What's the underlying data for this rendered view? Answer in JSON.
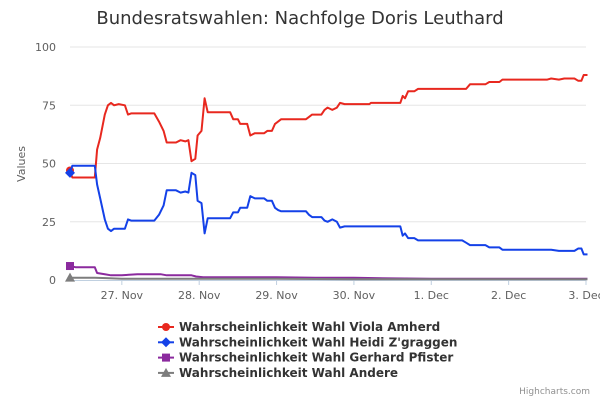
{
  "chart_data": {
    "type": "line",
    "title": "Bundesratswahlen: Nachfolge Doris Leuthard",
    "ylabel": "Values",
    "xlabel": "",
    "ylim": [
      0,
      100
    ],
    "yticks": [
      "0",
      "25",
      "50",
      "75",
      "100"
    ],
    "xlim": [
      26.33,
      33.0
    ],
    "xticks": [
      {
        "x": 27.0,
        "label": "27. Nov"
      },
      {
        "x": 28.0,
        "label": "28. Nov"
      },
      {
        "x": 29.0,
        "label": "29. Nov"
      },
      {
        "x": 30.0,
        "label": "30. Nov"
      },
      {
        "x": 31.0,
        "label": "1. Dec"
      },
      {
        "x": 32.0,
        "label": "2. Dec"
      },
      {
        "x": 33.0,
        "label": "3. Dec"
      }
    ],
    "series": [
      {
        "name": "Wahrscheinlichkeit Wahl Viola Amherd",
        "color": "#e8281f",
        "marker": "circle",
        "points": [
          [
            26.33,
            47
          ],
          [
            26.36,
            44
          ],
          [
            26.5,
            44
          ],
          [
            26.65,
            44
          ],
          [
            26.68,
            56
          ],
          [
            26.72,
            61
          ],
          [
            26.78,
            71
          ],
          [
            26.82,
            75
          ],
          [
            26.86,
            76
          ],
          [
            26.9,
            75
          ],
          [
            26.96,
            75.5
          ],
          [
            27.04,
            75
          ],
          [
            27.08,
            71
          ],
          [
            27.12,
            71.5
          ],
          [
            27.2,
            71.5
          ],
          [
            27.3,
            71.5
          ],
          [
            27.42,
            71.5
          ],
          [
            27.48,
            68
          ],
          [
            27.54,
            64
          ],
          [
            27.58,
            59
          ],
          [
            27.7,
            59
          ],
          [
            27.76,
            60
          ],
          [
            27.82,
            59.5
          ],
          [
            27.86,
            60
          ],
          [
            27.9,
            51
          ],
          [
            27.95,
            52
          ],
          [
            27.98,
            62
          ],
          [
            28.03,
            64
          ],
          [
            28.07,
            78
          ],
          [
            28.11,
            72
          ],
          [
            28.2,
            72
          ],
          [
            28.3,
            72
          ],
          [
            28.4,
            72
          ],
          [
            28.44,
            69
          ],
          [
            28.5,
            69
          ],
          [
            28.53,
            67
          ],
          [
            28.62,
            67
          ],
          [
            28.66,
            62
          ],
          [
            28.72,
            63
          ],
          [
            28.84,
            63
          ],
          [
            28.88,
            64
          ],
          [
            28.94,
            64
          ],
          [
            28.98,
            67
          ],
          [
            29.02,
            68
          ],
          [
            29.06,
            69
          ],
          [
            29.2,
            69
          ],
          [
            29.38,
            69
          ],
          [
            29.42,
            70
          ],
          [
            29.46,
            71
          ],
          [
            29.58,
            71
          ],
          [
            29.62,
            73
          ],
          [
            29.66,
            74
          ],
          [
            29.72,
            73
          ],
          [
            29.78,
            74
          ],
          [
            29.82,
            76
          ],
          [
            29.88,
            75.5
          ],
          [
            30.0,
            75.5
          ],
          [
            30.2,
            75.5
          ],
          [
            30.22,
            76
          ],
          [
            30.5,
            76
          ],
          [
            30.6,
            76
          ],
          [
            30.63,
            79
          ],
          [
            30.66,
            78
          ],
          [
            30.7,
            81
          ],
          [
            30.78,
            81
          ],
          [
            30.83,
            82
          ],
          [
            31.0,
            82
          ],
          [
            31.2,
            82
          ],
          [
            31.4,
            82
          ],
          [
            31.45,
            82
          ],
          [
            31.5,
            84
          ],
          [
            31.7,
            84
          ],
          [
            31.75,
            85
          ],
          [
            31.88,
            85
          ],
          [
            31.92,
            86
          ],
          [
            32.0,
            86
          ],
          [
            32.3,
            86
          ],
          [
            32.5,
            86
          ],
          [
            32.55,
            86.5
          ],
          [
            32.65,
            86
          ],
          [
            32.72,
            86.5
          ],
          [
            32.85,
            86.5
          ],
          [
            32.9,
            85.5
          ],
          [
            32.94,
            85.5
          ],
          [
            32.97,
            88
          ],
          [
            33.02,
            88
          ]
        ]
      },
      {
        "name": "Wahrscheinlichkeit Wahl Heidi Z'graggen",
        "color": "#1441e8",
        "marker": "diamond",
        "points": [
          [
            26.33,
            46
          ],
          [
            26.36,
            49
          ],
          [
            26.5,
            49
          ],
          [
            26.65,
            49
          ],
          [
            26.68,
            41
          ],
          [
            26.72,
            35
          ],
          [
            26.78,
            26
          ],
          [
            26.82,
            22
          ],
          [
            26.86,
            21
          ],
          [
            26.9,
            22
          ],
          [
            27.04,
            22
          ],
          [
            27.08,
            26
          ],
          [
            27.12,
            25.5
          ],
          [
            27.3,
            25.5
          ],
          [
            27.42,
            25.5
          ],
          [
            27.48,
            28
          ],
          [
            27.54,
            32
          ],
          [
            27.58,
            38.5
          ],
          [
            27.7,
            38.5
          ],
          [
            27.76,
            37.5
          ],
          [
            27.82,
            38
          ],
          [
            27.86,
            37.5
          ],
          [
            27.9,
            46
          ],
          [
            27.95,
            45
          ],
          [
            27.98,
            34
          ],
          [
            28.03,
            33
          ],
          [
            28.07,
            20
          ],
          [
            28.11,
            26.5
          ],
          [
            28.2,
            26.5
          ],
          [
            28.4,
            26.5
          ],
          [
            28.44,
            29
          ],
          [
            28.5,
            29
          ],
          [
            28.53,
            31
          ],
          [
            28.62,
            31
          ],
          [
            28.66,
            36
          ],
          [
            28.72,
            35
          ],
          [
            28.84,
            35
          ],
          [
            28.88,
            34
          ],
          [
            28.94,
            34
          ],
          [
            28.98,
            31
          ],
          [
            29.02,
            30
          ],
          [
            29.06,
            29.5
          ],
          [
            29.38,
            29.5
          ],
          [
            29.42,
            28
          ],
          [
            29.46,
            27
          ],
          [
            29.58,
            27
          ],
          [
            29.62,
            25.5
          ],
          [
            29.66,
            25
          ],
          [
            29.72,
            26
          ],
          [
            29.78,
            25
          ],
          [
            29.82,
            22.5
          ],
          [
            29.88,
            23
          ],
          [
            30.2,
            23
          ],
          [
            30.22,
            23
          ],
          [
            30.6,
            23
          ],
          [
            30.63,
            19
          ],
          [
            30.66,
            20
          ],
          [
            30.7,
            18
          ],
          [
            30.78,
            18
          ],
          [
            30.83,
            17
          ],
          [
            31.0,
            17
          ],
          [
            31.4,
            17
          ],
          [
            31.45,
            16
          ],
          [
            31.5,
            15
          ],
          [
            31.7,
            15
          ],
          [
            31.75,
            14
          ],
          [
            31.88,
            14
          ],
          [
            31.92,
            13
          ],
          [
            32.0,
            13
          ],
          [
            32.5,
            13
          ],
          [
            32.55,
            13
          ],
          [
            32.65,
            12.5
          ],
          [
            32.85,
            12.5
          ],
          [
            32.9,
            13.5
          ],
          [
            32.94,
            13.5
          ],
          [
            32.97,
            11
          ],
          [
            33.02,
            11
          ]
        ]
      },
      {
        "name": "Wahrscheinlichkeit Wahl Gerhard Pfister",
        "color": "#8b2a9e",
        "marker": "square",
        "points": [
          [
            26.33,
            6
          ],
          [
            26.4,
            5.5
          ],
          [
            26.65,
            5.5
          ],
          [
            26.68,
            3
          ],
          [
            26.78,
            2.5
          ],
          [
            26.86,
            2
          ],
          [
            27.0,
            2
          ],
          [
            27.2,
            2.5
          ],
          [
            27.5,
            2.5
          ],
          [
            27.58,
            2
          ],
          [
            27.9,
            2
          ],
          [
            27.96,
            1.5
          ],
          [
            28.05,
            1.2
          ],
          [
            28.5,
            1.2
          ],
          [
            29.0,
            1.2
          ],
          [
            29.5,
            1
          ],
          [
            30.0,
            1
          ],
          [
            30.5,
            0.7
          ],
          [
            31.0,
            0.5
          ],
          [
            32.0,
            0.5
          ],
          [
            33.02,
            0.5
          ]
        ]
      },
      {
        "name": "Wahrscheinlichkeit Wahl Andere",
        "color": "#7d7d7d",
        "marker": "triangle",
        "points": [
          [
            26.33,
            1
          ],
          [
            26.65,
            1
          ],
          [
            26.8,
            0.8
          ],
          [
            27.0,
            0.5
          ],
          [
            27.5,
            0.5
          ],
          [
            28.0,
            0.5
          ],
          [
            29.0,
            0.5
          ],
          [
            30.0,
            0.3
          ],
          [
            31.0,
            0.3
          ],
          [
            32.0,
            0.3
          ],
          [
            33.02,
            0.3
          ]
        ]
      }
    ],
    "legend_position": "bottom-center",
    "credit": "Highcharts.com"
  }
}
